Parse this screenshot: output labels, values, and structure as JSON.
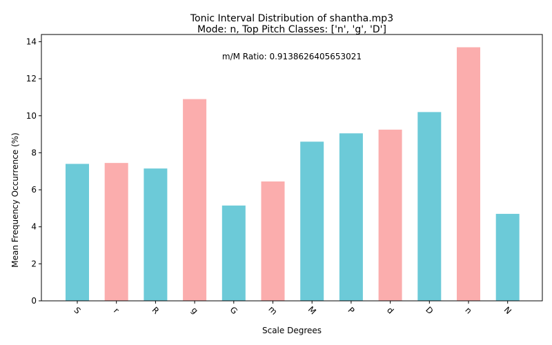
{
  "chart_data": {
    "type": "bar",
    "title": "Tonic Interval Distribution of shantha.mp3",
    "subtitle": "Mode: n, Top Pitch Classes: ['n', 'g', 'D']",
    "xlabel": "Scale Degrees",
    "ylabel": "Mean Frequency Occurrence (%)",
    "annotation": "m/M Ratio: 0.9138626405653021",
    "categories": [
      "S",
      "r",
      "R",
      "g",
      "G",
      "m",
      "M",
      "P",
      "d",
      "D",
      "n",
      "N"
    ],
    "values": [
      7.4,
      7.45,
      7.15,
      10.9,
      5.15,
      6.45,
      8.6,
      9.05,
      9.25,
      10.2,
      13.7,
      4.7
    ],
    "bar_colors": [
      "#6ccad8",
      "#fbadad",
      "#6ccad8",
      "#fbadad",
      "#6ccad8",
      "#fbadad",
      "#6ccad8",
      "#6ccad8",
      "#fbadad",
      "#6ccad8",
      "#fbadad",
      "#6ccad8"
    ],
    "yticks": [
      "0",
      "2",
      "4",
      "6",
      "8",
      "10",
      "12",
      "14"
    ],
    "ylim": [
      0,
      14.39
    ],
    "grid": false,
    "legend": "none"
  }
}
